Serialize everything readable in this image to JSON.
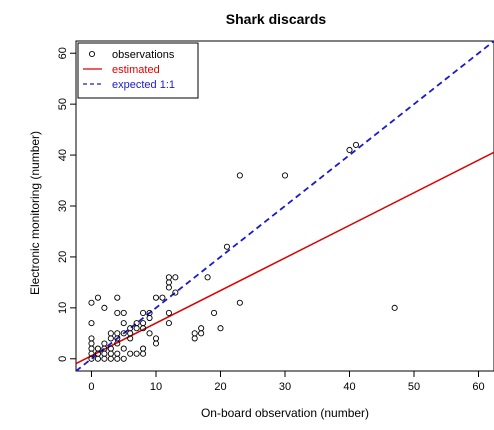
{
  "chart_data": {
    "type": "scatter",
    "title": "Shark discards",
    "xlabel": "On-board observation (number)",
    "ylabel": "Electronic monitoring (number)",
    "xlim": [
      -2.4,
      62.4
    ],
    "ylim": [
      -2.4,
      62.4
    ],
    "xticks": [
      0,
      10,
      20,
      30,
      40,
      50,
      60
    ],
    "yticks": [
      0,
      10,
      20,
      30,
      40,
      50,
      60
    ],
    "grid": false,
    "legend_position": "top-left",
    "legend": [
      {
        "label": "observations",
        "color": "#000000",
        "style": "open-circle"
      },
      {
        "label": "estimated",
        "color": "#dd0000",
        "style": "solid-line"
      },
      {
        "label": "expected 1:1",
        "color": "#1a1acc",
        "style": "dashed-line"
      }
    ],
    "series": [
      {
        "name": "observations",
        "color": "#000000",
        "points": [
          [
            0,
            0
          ],
          [
            0,
            1
          ],
          [
            0,
            2
          ],
          [
            0,
            3
          ],
          [
            0,
            4
          ],
          [
            0,
            7
          ],
          [
            0,
            11
          ],
          [
            1,
            0
          ],
          [
            1,
            1
          ],
          [
            1,
            2
          ],
          [
            1,
            12
          ],
          [
            2,
            0
          ],
          [
            2,
            1
          ],
          [
            2,
            2
          ],
          [
            2,
            3
          ],
          [
            2,
            10
          ],
          [
            3,
            0
          ],
          [
            3,
            1
          ],
          [
            3,
            2
          ],
          [
            3,
            4
          ],
          [
            3,
            5
          ],
          [
            4,
            0
          ],
          [
            4,
            1
          ],
          [
            4,
            3
          ],
          [
            4,
            4
          ],
          [
            4,
            5
          ],
          [
            4,
            9
          ],
          [
            4,
            12
          ],
          [
            5,
            0
          ],
          [
            5,
            2
          ],
          [
            5,
            5
          ],
          [
            5,
            7
          ],
          [
            5,
            9
          ],
          [
            6,
            1
          ],
          [
            6,
            4
          ],
          [
            6,
            5
          ],
          [
            6,
            6
          ],
          [
            7,
            1
          ],
          [
            7,
            6
          ],
          [
            7,
            7
          ],
          [
            8,
            1
          ],
          [
            8,
            2
          ],
          [
            8,
            6
          ],
          [
            8,
            7
          ],
          [
            8,
            9
          ],
          [
            9,
            5
          ],
          [
            9,
            8
          ],
          [
            9,
            9
          ],
          [
            10,
            3
          ],
          [
            10,
            4
          ],
          [
            10,
            12
          ],
          [
            11,
            12
          ],
          [
            12,
            7
          ],
          [
            12,
            9
          ],
          [
            12,
            14
          ],
          [
            12,
            15
          ],
          [
            12,
            16
          ],
          [
            13,
            13
          ],
          [
            13,
            16
          ],
          [
            16,
            4
          ],
          [
            16,
            5
          ],
          [
            17,
            5
          ],
          [
            17,
            6
          ],
          [
            18,
            16
          ],
          [
            19,
            9
          ],
          [
            20,
            6
          ],
          [
            21,
            22
          ],
          [
            23,
            11
          ],
          [
            23,
            36
          ],
          [
            30,
            36
          ],
          [
            40,
            41
          ],
          [
            41,
            42
          ],
          [
            47,
            10
          ]
        ]
      },
      {
        "name": "estimated",
        "color": "#dd0000",
        "intercept": 0.6,
        "slope": 0.64
      },
      {
        "name": "expected 1:1",
        "color": "#1a1acc",
        "intercept": 0,
        "slope": 1
      }
    ]
  }
}
